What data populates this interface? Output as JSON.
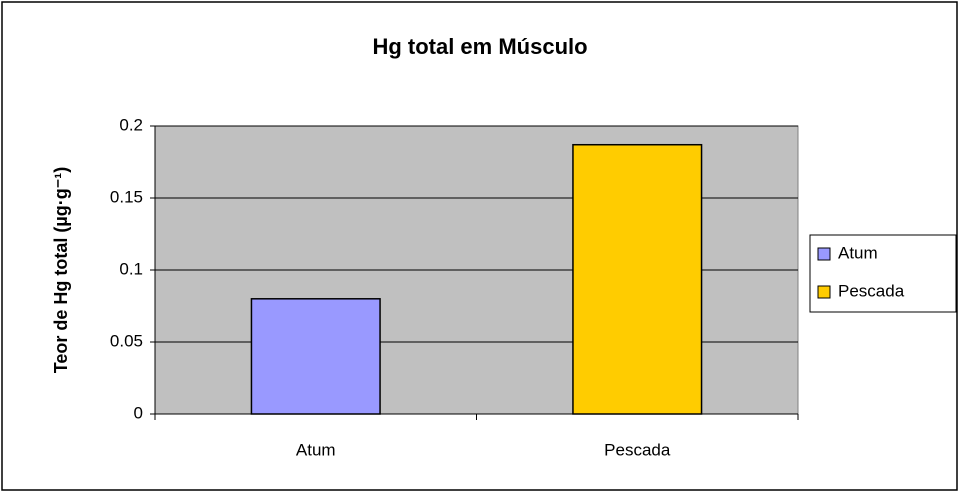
{
  "chart_data": {
    "type": "bar",
    "title": "Hg total em Músculo",
    "y_label": "Teor de Hg total (µg·g⁻¹)",
    "categories": [
      "Atum",
      "Pescada"
    ],
    "values": [
      0.08,
      0.187
    ],
    "colors": [
      "#9999ff",
      "#ffcc00"
    ],
    "ylim": [
      0,
      0.2
    ],
    "yticks": [
      0,
      0.05,
      0.1,
      0.15,
      0.2
    ],
    "grid": true,
    "legend": "right"
  }
}
